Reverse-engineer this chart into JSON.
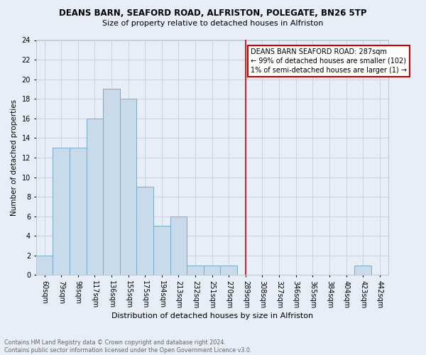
{
  "title1": "DEANS BARN, SEAFORD ROAD, ALFRISTON, POLEGATE, BN26 5TP",
  "title2": "Size of property relative to detached houses in Alfriston",
  "xlabel": "Distribution of detached houses by size in Alfriston",
  "ylabel": "Number of detached properties",
  "bin_labels": [
    "60sqm",
    "79sqm",
    "98sqm",
    "117sqm",
    "136sqm",
    "155sqm",
    "175sqm",
    "194sqm",
    "213sqm",
    "232sqm",
    "251sqm",
    "270sqm",
    "289sqm",
    "308sqm",
    "327sqm",
    "346sqm",
    "365sqm",
    "384sqm",
    "404sqm",
    "423sqm",
    "442sqm"
  ],
  "bin_values": [
    2,
    13,
    13,
    16,
    19,
    18,
    9,
    5,
    6,
    1,
    1,
    1,
    0,
    0,
    0,
    0,
    0,
    0,
    0,
    1,
    0
  ],
  "bar_color": "#c9daea",
  "bar_edge_color": "#7aaac8",
  "bar_linewidth": 0.7,
  "vline_x": 12.0,
  "vline_color": "#cc0000",
  "vline_linewidth": 1.2,
  "annotation_title": "DEANS BARN SEAFORD ROAD: 287sqm",
  "annotation_line1": "← 99% of detached houses are smaller (102)",
  "annotation_line2": "1% of semi-detached houses are larger (1) →",
  "annotation_box_color": "white",
  "annotation_box_edge": "#cc0000",
  "ylim": [
    0,
    24
  ],
  "yticks": [
    0,
    2,
    4,
    6,
    8,
    10,
    12,
    14,
    16,
    18,
    20,
    22,
    24
  ],
  "grid_color": "#c8d4e4",
  "background_color": "#e8eef8",
  "footer_line1": "Contains HM Land Registry data © Crown copyright and database right 2024.",
  "footer_line2": "Contains public sector information licensed under the Open Government Licence v3.0."
}
